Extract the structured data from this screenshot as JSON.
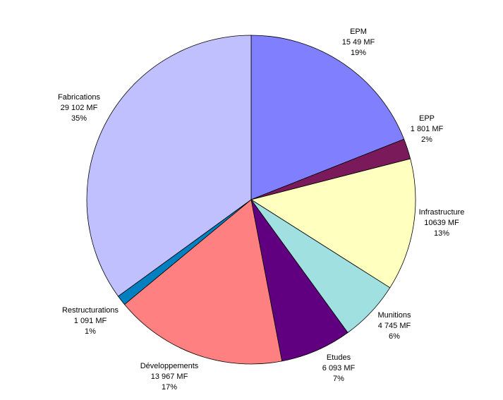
{
  "chart_data": {
    "type": "pie",
    "categories": [
      "EPM",
      "EPP",
      "Infrastructure",
      "Munitions",
      "Etudes",
      "Développements",
      "Restructurations",
      "Fabrications"
    ],
    "amounts": [
      "15 49 MF",
      "1 801 MF",
      "10639 MF",
      "4 745 MF",
      "6 093 MF",
      "13 967 MF",
      "1 091 MF",
      "29 102 MF"
    ],
    "values": [
      19,
      2,
      13,
      6,
      7,
      17,
      1,
      35
    ],
    "value_labels": [
      "19%",
      "2%",
      "13%",
      "6%",
      "7%",
      "17%",
      "1%",
      "35%"
    ],
    "colors": [
      "#8080ff",
      "#7a1a5a",
      "#ffffc0",
      "#a0e0e0",
      "#600080",
      "#ff8080",
      "#0080c0",
      "#c0c0ff"
    ]
  }
}
